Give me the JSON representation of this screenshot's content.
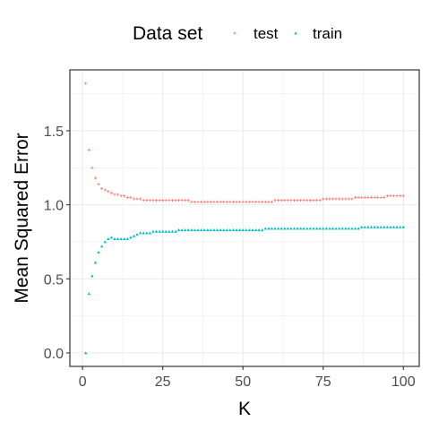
{
  "chart_data": {
    "type": "scatter",
    "title": "",
    "xlabel": "K",
    "ylabel": "Mean Squared Error",
    "xlim": [
      -3.95,
      104.95
    ],
    "ylim": [
      -0.091,
      1.911
    ],
    "x_ticks": [
      0,
      25,
      50,
      75,
      100
    ],
    "x_tick_labels": [
      "0",
      "25",
      "50",
      "75",
      "100"
    ],
    "y_ticks": [
      0.0,
      0.5,
      1.0,
      1.5
    ],
    "y_tick_labels": [
      "0.0",
      "0.5",
      "1.0",
      "1.5"
    ],
    "grid": true,
    "legend": {
      "title": "Data set",
      "position": "top",
      "entries": [
        {
          "label": "test",
          "color": "#F8766D",
          "shape": "plus"
        },
        {
          "label": "train",
          "color": "#00BFC4",
          "shape": "triangle"
        }
      ]
    },
    "series": [
      {
        "name": "test",
        "color": "#F8766D",
        "x": [
          1,
          2,
          3,
          4,
          5,
          6,
          7,
          8,
          9,
          10,
          11,
          12,
          13,
          14,
          15,
          16,
          17,
          18,
          19,
          20,
          21,
          22,
          23,
          24,
          25,
          26,
          27,
          28,
          29,
          30,
          31,
          32,
          33,
          34,
          35,
          36,
          37,
          38,
          39,
          40,
          41,
          42,
          43,
          44,
          45,
          46,
          47,
          48,
          49,
          50,
          51,
          52,
          53,
          54,
          55,
          56,
          57,
          58,
          59,
          60,
          61,
          62,
          63,
          64,
          65,
          66,
          67,
          68,
          69,
          70,
          71,
          72,
          73,
          74,
          75,
          76,
          77,
          78,
          79,
          80,
          81,
          82,
          83,
          84,
          85,
          86,
          87,
          88,
          89,
          90,
          91,
          92,
          93,
          94,
          95,
          96,
          97,
          98,
          99,
          100
        ],
        "y": [
          1.82,
          1.37,
          1.25,
          1.18,
          1.14,
          1.11,
          1.1,
          1.09,
          1.08,
          1.07,
          1.07,
          1.06,
          1.06,
          1.05,
          1.05,
          1.04,
          1.04,
          1.04,
          1.03,
          1.03,
          1.03,
          1.03,
          1.03,
          1.03,
          1.03,
          1.03,
          1.03,
          1.03,
          1.03,
          1.03,
          1.03,
          1.03,
          1.03,
          1.02,
          1.02,
          1.02,
          1.02,
          1.02,
          1.02,
          1.02,
          1.02,
          1.02,
          1.02,
          1.02,
          1.02,
          1.02,
          1.02,
          1.02,
          1.02,
          1.02,
          1.02,
          1.02,
          1.02,
          1.02,
          1.02,
          1.02,
          1.02,
          1.02,
          1.02,
          1.03,
          1.03,
          1.03,
          1.03,
          1.03,
          1.03,
          1.03,
          1.03,
          1.03,
          1.03,
          1.03,
          1.03,
          1.03,
          1.03,
          1.03,
          1.04,
          1.04,
          1.04,
          1.04,
          1.04,
          1.04,
          1.04,
          1.04,
          1.04,
          1.04,
          1.05,
          1.05,
          1.05,
          1.05,
          1.05,
          1.05,
          1.05,
          1.05,
          1.05,
          1.05,
          1.06,
          1.06,
          1.06,
          1.06,
          1.06,
          1.06
        ]
      },
      {
        "name": "train",
        "color": "#00BFC4",
        "x": [
          1,
          2,
          3,
          4,
          5,
          6,
          7,
          8,
          9,
          10,
          11,
          12,
          13,
          14,
          15,
          16,
          17,
          18,
          19,
          20,
          21,
          22,
          23,
          24,
          25,
          26,
          27,
          28,
          29,
          30,
          31,
          32,
          33,
          34,
          35,
          36,
          37,
          38,
          39,
          40,
          41,
          42,
          43,
          44,
          45,
          46,
          47,
          48,
          49,
          50,
          51,
          52,
          53,
          54,
          55,
          56,
          57,
          58,
          59,
          60,
          61,
          62,
          63,
          64,
          65,
          66,
          67,
          68,
          69,
          70,
          71,
          72,
          73,
          74,
          75,
          76,
          77,
          78,
          79,
          80,
          81,
          82,
          83,
          84,
          85,
          86,
          87,
          88,
          89,
          90,
          91,
          92,
          93,
          94,
          95,
          96,
          97,
          98,
          99,
          100
        ],
        "y": [
          0.0,
          0.4,
          0.52,
          0.61,
          0.68,
          0.72,
          0.75,
          0.77,
          0.78,
          0.77,
          0.77,
          0.77,
          0.77,
          0.77,
          0.78,
          0.79,
          0.8,
          0.81,
          0.81,
          0.81,
          0.81,
          0.82,
          0.82,
          0.82,
          0.82,
          0.82,
          0.82,
          0.82,
          0.82,
          0.83,
          0.83,
          0.83,
          0.83,
          0.83,
          0.83,
          0.83,
          0.83,
          0.83,
          0.83,
          0.83,
          0.83,
          0.83,
          0.83,
          0.83,
          0.83,
          0.83,
          0.83,
          0.83,
          0.83,
          0.83,
          0.83,
          0.83,
          0.83,
          0.83,
          0.83,
          0.83,
          0.84,
          0.84,
          0.84,
          0.84,
          0.84,
          0.84,
          0.84,
          0.84,
          0.84,
          0.84,
          0.84,
          0.84,
          0.84,
          0.84,
          0.84,
          0.84,
          0.84,
          0.84,
          0.84,
          0.84,
          0.84,
          0.84,
          0.84,
          0.84,
          0.84,
          0.84,
          0.84,
          0.84,
          0.84,
          0.84,
          0.85,
          0.85,
          0.85,
          0.85,
          0.85,
          0.85,
          0.85,
          0.85,
          0.85,
          0.85,
          0.85,
          0.85,
          0.85,
          0.85
        ]
      }
    ]
  }
}
